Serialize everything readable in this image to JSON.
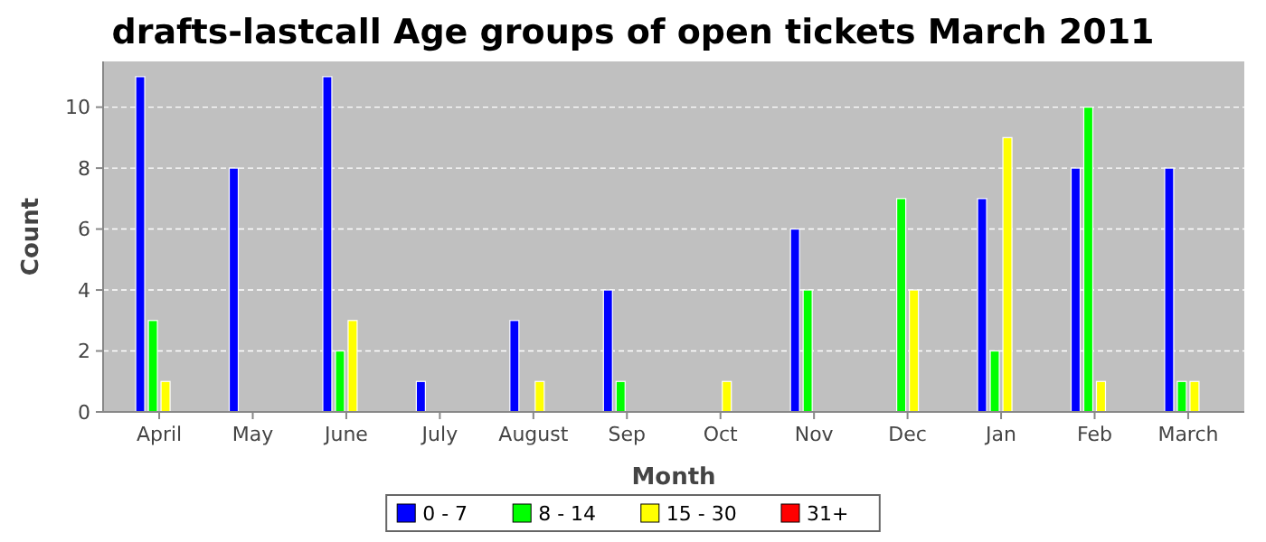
{
  "chart_data": {
    "type": "bar",
    "title": "drafts-lastcall Age groups of open tickets March 2011",
    "xlabel": "Month",
    "ylabel": "Count",
    "categories": [
      "April",
      "May",
      "June",
      "July",
      "August",
      "Sep",
      "Oct",
      "Nov",
      "Dec",
      "Jan",
      "Feb",
      "March"
    ],
    "series": [
      {
        "name": "0 - 7",
        "color": "#0000ff",
        "values": [
          11,
          8,
          11,
          1,
          3,
          4,
          0,
          6,
          0,
          7,
          8,
          8
        ]
      },
      {
        "name": "8 - 14",
        "color": "#00ff00",
        "values": [
          3,
          0,
          2,
          0,
          0,
          1,
          0,
          4,
          7,
          2,
          10,
          1
        ]
      },
      {
        "name": "15 - 30",
        "color": "#ffff00",
        "values": [
          1,
          0,
          3,
          0,
          1,
          0,
          1,
          0,
          4,
          9,
          1,
          1
        ]
      },
      {
        "name": "31+",
        "color": "#ff0000",
        "values": [
          0,
          0,
          0,
          0,
          0,
          0,
          0,
          0,
          0,
          0,
          0,
          0
        ]
      }
    ],
    "ylim": [
      0,
      11.5
    ],
    "yticks": [
      0,
      2,
      4,
      6,
      8,
      10
    ],
    "grid": "y",
    "legend": "bottom"
  }
}
